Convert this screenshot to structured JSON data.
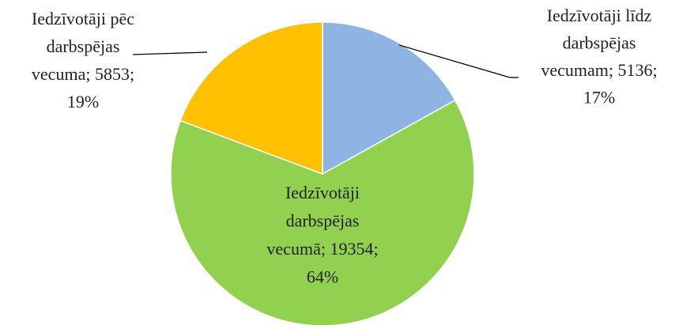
{
  "chart_data": {
    "type": "pie",
    "categories": [
      "Iedzīvotāji līdz darbspējas vecumam",
      "Iedzīvotāji darbspējas vecumā",
      "Iedzīvotāji pēc darbspējas vecuma"
    ],
    "values": [
      5136,
      19354,
      5853
    ],
    "value_labels": [
      [
        "Iedzīvotāji līdz",
        "darbspējas",
        "vecumam; 5136;",
        "17%"
      ],
      [
        "Iedzīvotāji",
        "darbspējas",
        "vecumā; 19354;",
        "64%"
      ],
      [
        "Iedzīvotāji pēc",
        "darbspējas",
        "vecuma; 5853;",
        "19%"
      ]
    ],
    "colors": [
      "#8eb4e3",
      "#92d050",
      "#ffc000"
    ]
  }
}
